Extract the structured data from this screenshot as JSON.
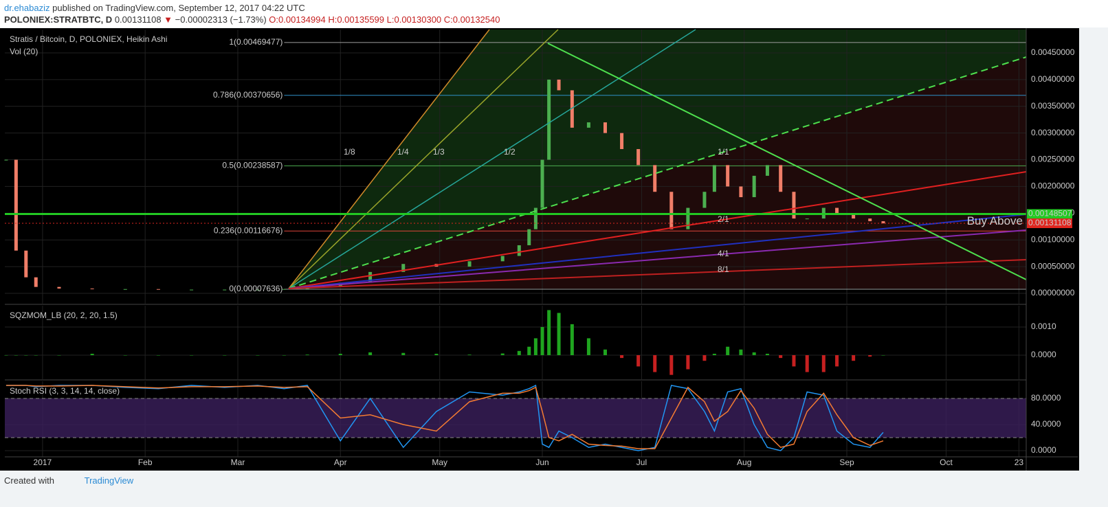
{
  "header": {
    "author": "dr.ehabaziz",
    "published": "published on TradingView.com, September 12, 2017 04:22 UTC",
    "symbol": "POLONIEX:STRATBTC, D",
    "last": "0.00131108",
    "arrow": "▼",
    "change": "−0.00002313 (−1.73%)",
    "open": "O:0.00134994",
    "high": "H:0.00135599",
    "low": "L:0.00130300",
    "close": "C:0.00132540"
  },
  "footer": {
    "created": "Created with",
    "brand": "TradingView"
  },
  "chart_data": [
    {
      "type": "candlestick",
      "title": "Stratis / Bitcoin, D, POLONIEX, Heikin Ashi",
      "subtitle": "Vol (20)",
      "x": [
        -11,
        -8,
        -5,
        -2,
        5,
        15,
        25,
        35,
        45,
        55,
        65,
        73,
        80,
        90,
        99,
        109,
        119,
        129,
        139,
        144,
        147,
        149,
        151,
        153,
        156,
        160,
        165,
        170,
        175,
        180,
        185,
        190,
        195,
        200,
        203,
        207,
        211,
        215,
        219,
        223,
        227,
        231,
        236,
        240,
        245,
        250,
        254
      ],
      "values": [
        0.0025,
        0.0008,
        0.0003,
        0.00012,
        9e-05,
        8e-05,
        8e-05,
        7e-05,
        7e-05,
        7e-05,
        7e-05,
        8e-05,
        0.00012,
        0.0002,
        0.0004,
        0.00055,
        0.0005,
        0.0006,
        0.0007,
        0.0009,
        0.0012,
        0.0016,
        0.0025,
        0.004,
        0.0038,
        0.0031,
        0.0032,
        0.003,
        0.0027,
        0.0024,
        0.0019,
        0.0012,
        0.0016,
        0.0019,
        0.0024,
        0.002,
        0.0018,
        0.0022,
        0.0024,
        0.0019,
        0.0014,
        0.0014,
        0.0016,
        0.0015,
        0.0014,
        0.00135,
        0.00131
      ],
      "up_color": "#4caf50",
      "down_color": "#f07e68",
      "xlim": [
        -11.4,
        297.2
      ],
      "xticks": [
        {
          "value": 0,
          "label": "2017"
        },
        {
          "value": 31,
          "label": "Feb"
        },
        {
          "value": 59,
          "label": "Mar"
        },
        {
          "value": 90,
          "label": "Apr"
        },
        {
          "value": 120,
          "label": "May"
        },
        {
          "value": 151,
          "label": "Jun"
        },
        {
          "value": 181,
          "label": "Jul"
        },
        {
          "value": 212,
          "label": "Aug"
        },
        {
          "value": 243,
          "label": "Sep"
        },
        {
          "value": 273,
          "label": "Oct"
        },
        {
          "value": 295,
          "label": "23"
        }
      ],
      "ylim": [
        -0.000193,
        0.004937
      ],
      "yticks": [
        {
          "value": 0.0045,
          "label": "0.00450000"
        },
        {
          "value": 0.004,
          "label": "0.00400000"
        },
        {
          "value": 0.0035,
          "label": "0.00350000"
        },
        {
          "value": 0.003,
          "label": "0.00300000"
        },
        {
          "value": 0.0025,
          "label": "0.00250000"
        },
        {
          "value": 0.002,
          "label": "0.00200000"
        },
        {
          "value": 0.0015,
          "label": "0.00150000"
        },
        {
          "value": 0.001,
          "label": "0.00100000"
        },
        {
          "value": 0.0005,
          "label": "0.00050000"
        },
        {
          "value": 0,
          "label": "0.00000000"
        }
      ],
      "grid": true,
      "fib_start": 73,
      "fib_levels": [
        {
          "value": 0.00469477,
          "label": "1(0.00469477)",
          "color": "#9e9e9e"
        },
        {
          "value": 0.00370656,
          "label": "0.786(0.00370656)",
          "color": "#2f8fc9"
        },
        {
          "value": 0.00238587,
          "label": "0.5(0.00238587)",
          "color": "#4caf50"
        },
        {
          "value": 0.00116676,
          "label": "0.236(0.00116676)",
          "color": "#e0453a"
        },
        {
          "value": 7.636e-05,
          "label": "0(0.00007636)",
          "color": "#9e9e9e"
        }
      ],
      "fan_labels": [
        "1/8",
        "1/4",
        "1/3",
        "1/2",
        "1/1",
        "2/1",
        "4/1",
        "8/1"
      ],
      "annotation": "Buy Above",
      "price_labels": [
        {
          "value": 0.00148507,
          "label": "0.00148507",
          "color": "#22c922"
        },
        {
          "value": 0.00131108,
          "label": "0.00131108",
          "color": "#e0261f"
        }
      ]
    },
    {
      "type": "bar",
      "title": "SQZMOM_LB (20, 2, 20, 1.5)",
      "x": [
        -11,
        -8,
        -5,
        -2,
        5,
        15,
        25,
        35,
        45,
        55,
        65,
        73,
        80,
        90,
        99,
        109,
        119,
        129,
        139,
        144,
        147,
        149,
        151,
        153,
        156,
        160,
        165,
        170,
        175,
        180,
        185,
        190,
        195,
        200,
        203,
        207,
        211,
        215,
        219,
        223,
        227,
        231,
        236,
        240,
        245,
        250,
        254
      ],
      "values": [
        0,
        0,
        0,
        0,
        0,
        5e-05,
        0,
        0,
        0,
        0,
        0,
        0,
        2e-05,
        5e-05,
        0.0001,
        8e-05,
        5e-05,
        2e-05,
        6e-05,
        0.00015,
        0.0003,
        0.0006,
        0.001,
        0.0016,
        0.0015,
        0.0011,
        0.0006,
        0.0002,
        -0.0001,
        -0.0004,
        -0.0006,
        -0.0007,
        -0.0005,
        -0.0002,
        5e-05,
        0.0003,
        0.0002,
        0.0001,
        5e-05,
        -0.0001,
        -0.0004,
        -0.0006,
        -0.0006,
        -0.0004,
        -0.0002,
        -5e-05,
        0
      ],
      "up_color": "#1fa51f",
      "down_color": "#c62020",
      "ylim": [
        -0.000854,
        0.001756
      ],
      "yticks": [
        {
          "value": 0.001,
          "label": "0.0010"
        },
        {
          "value": 0,
          "label": "0.0000"
        }
      ]
    },
    {
      "type": "line",
      "title": "Stoch RSI (3, 3, 14, 14, close)",
      "x": [
        -11,
        -8,
        -5,
        -2,
        5,
        15,
        25,
        35,
        45,
        55,
        65,
        73,
        80,
        90,
        99,
        109,
        119,
        129,
        139,
        144,
        147,
        149,
        151,
        153,
        156,
        160,
        165,
        170,
        175,
        180,
        185,
        190,
        195,
        200,
        203,
        207,
        211,
        215,
        219,
        223,
        227,
        231,
        236,
        240,
        245,
        250,
        254
      ],
      "series": [
        {
          "color": "#2196f3",
          "values": [
            100,
            100,
            100,
            98,
            100,
            100,
            97,
            95,
            100,
            97,
            100,
            95,
            100,
            15,
            80,
            5,
            60,
            90,
            85,
            90,
            95,
            100,
            10,
            5,
            30,
            20,
            5,
            10,
            5,
            0,
            5,
            100,
            95,
            60,
            30,
            90,
            95,
            40,
            5,
            0,
            20,
            90,
            85,
            30,
            10,
            5,
            28
          ]
        },
        {
          "color": "#f57c32",
          "values": [
            100,
            100,
            100,
            99,
            99,
            100,
            98,
            96,
            98,
            98,
            99,
            97,
            98,
            50,
            55,
            40,
            30,
            75,
            88,
            88,
            92,
            97,
            60,
            20,
            15,
            25,
            10,
            8,
            7,
            3,
            3,
            50,
            97,
            75,
            45,
            60,
            92,
            65,
            25,
            5,
            10,
            60,
            88,
            55,
            20,
            8,
            15
          ]
        }
      ],
      "band": [
        20,
        80
      ],
      "band_color": "#3b1f5c",
      "ylim": [
        -9.5,
        106.3
      ],
      "yticks": [
        {
          "value": 80,
          "label": "80.0000"
        },
        {
          "value": 40,
          "label": "40.0000"
        },
        {
          "value": 0,
          "label": "0.0000"
        }
      ]
    }
  ]
}
